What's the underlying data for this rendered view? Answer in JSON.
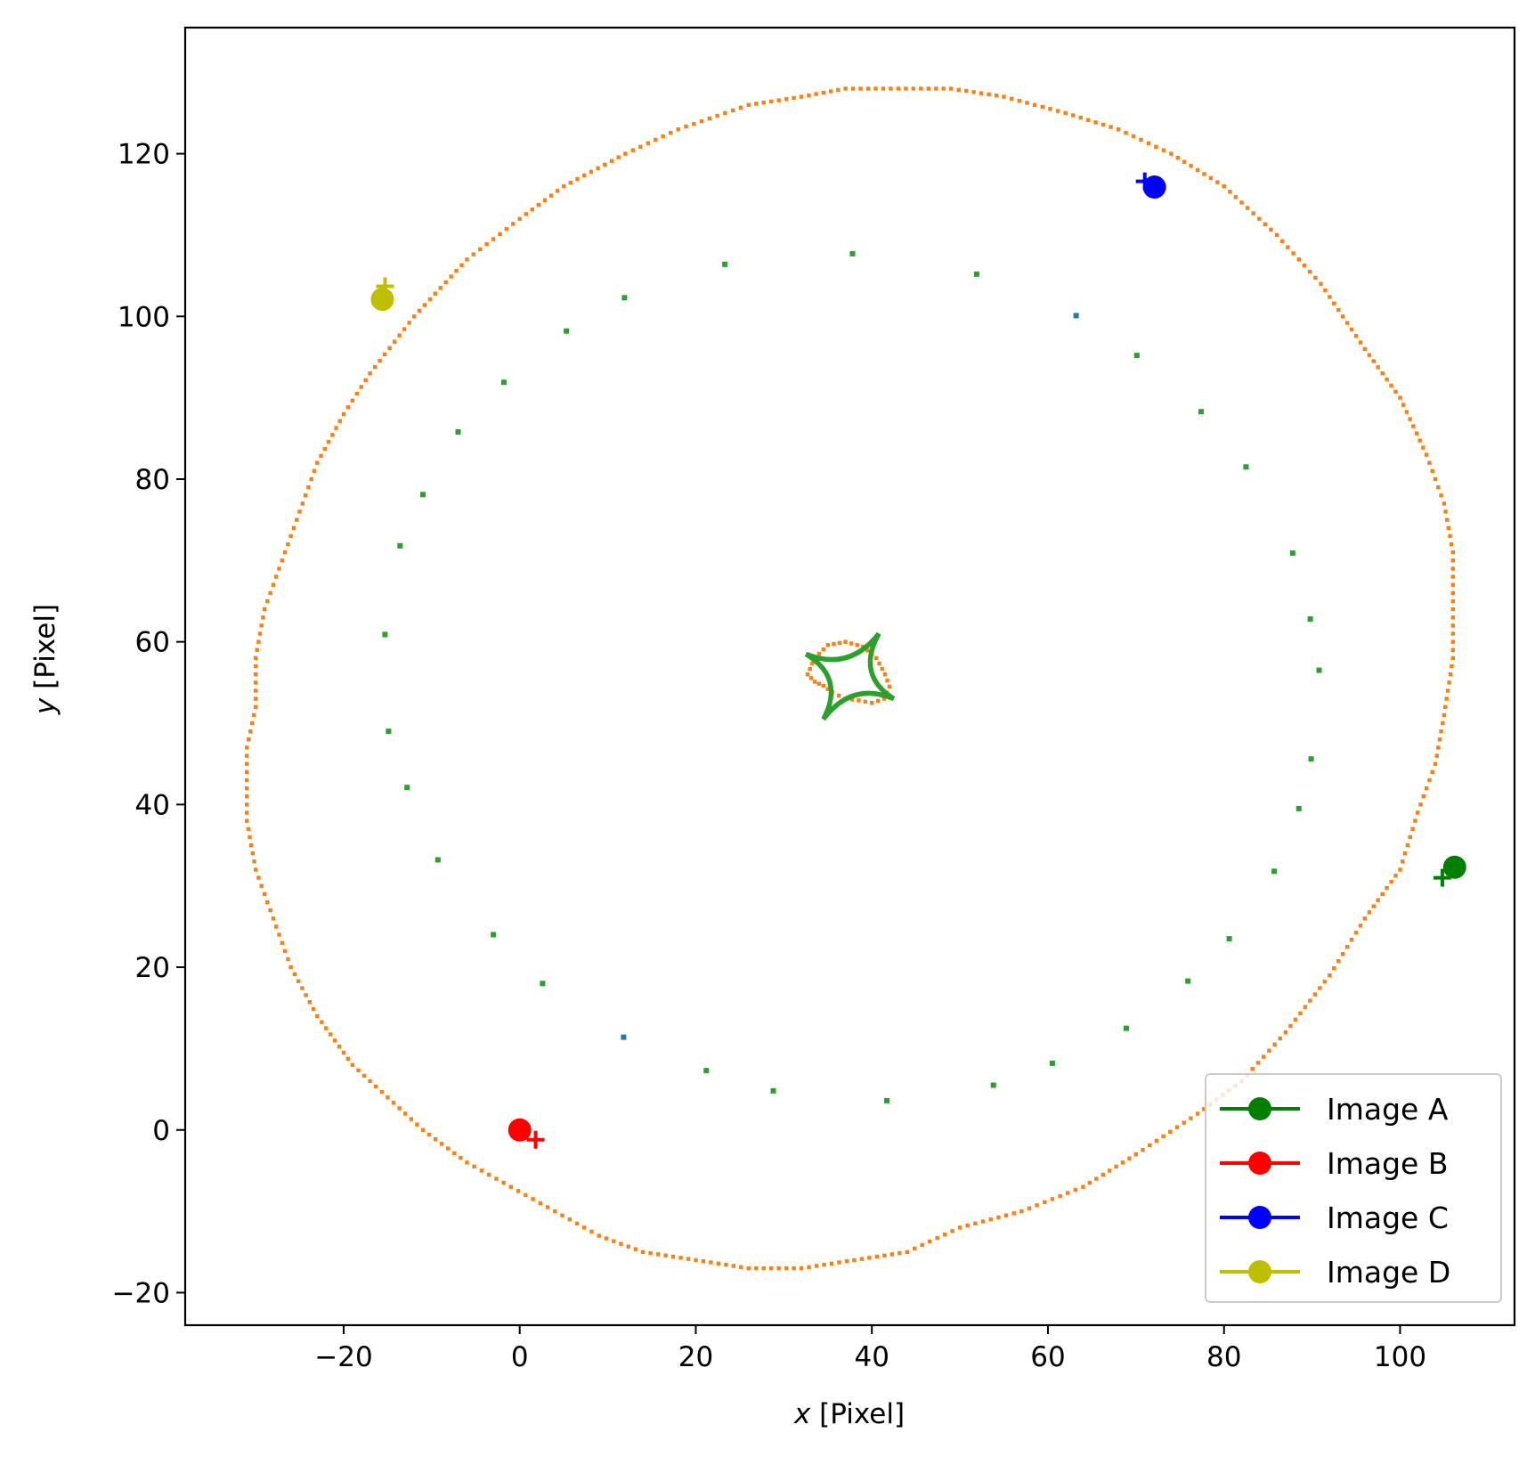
{
  "chart_data": {
    "type": "scatter",
    "xlabel": {
      "var": "x",
      "unit": "[Pixel]"
    },
    "ylabel": {
      "var": "y",
      "unit": "[Pixel]"
    },
    "xlim": [
      -38,
      113
    ],
    "ylim": [
      -24,
      135.5
    ],
    "xticks": [
      -20,
      0,
      20,
      40,
      60,
      80,
      100
    ],
    "yticks": [
      -20,
      0,
      20,
      40,
      60,
      80,
      100,
      120
    ],
    "grid": false,
    "legend_position": "lower-right",
    "colors": {
      "orange": "#ff7f0e",
      "green_small": "#2ca02c",
      "blue_small": "#1f77b4",
      "image_a": "#008000",
      "image_b": "#ff0000",
      "image_c": "#0000ff",
      "image_d": "#bfbf00"
    },
    "outer_curve": {
      "color": "#ff7f0e",
      "points": [
        [
          -31,
          47
        ],
        [
          -30,
          52
        ],
        [
          -30,
          58
        ],
        [
          -29,
          64
        ],
        [
          -27,
          70
        ],
        [
          -25,
          76
        ],
        [
          -23,
          82
        ],
        [
          -20,
          88
        ],
        [
          -17,
          93
        ],
        [
          -12,
          100
        ],
        [
          -6,
          107
        ],
        [
          0,
          112
        ],
        [
          5,
          116
        ],
        [
          12,
          120
        ],
        [
          18,
          123
        ],
        [
          26,
          126
        ],
        [
          32,
          127
        ],
        [
          37,
          128
        ],
        [
          43,
          128
        ],
        [
          49,
          128
        ],
        [
          55,
          127
        ],
        [
          62,
          125
        ],
        [
          68,
          123
        ],
        [
          74,
          120
        ],
        [
          80,
          116
        ],
        [
          86,
          110
        ],
        [
          91,
          104
        ],
        [
          96,
          96
        ],
        [
          100,
          90
        ],
        [
          103,
          83
        ],
        [
          105,
          77
        ],
        [
          106,
          71
        ],
        [
          106,
          64
        ],
        [
          106,
          58
        ],
        [
          105,
          51
        ],
        [
          104,
          45
        ],
        [
          102,
          39
        ],
        [
          100,
          32
        ],
        [
          96,
          26
        ],
        [
          92,
          19
        ],
        [
          87,
          12
        ],
        [
          82,
          6
        ],
        [
          77,
          2
        ],
        [
          70,
          -3
        ],
        [
          64,
          -7
        ],
        [
          57,
          -10
        ],
        [
          50,
          -12
        ],
        [
          44,
          -15
        ],
        [
          38,
          -16
        ],
        [
          32,
          -17
        ],
        [
          26,
          -17
        ],
        [
          20,
          -16
        ],
        [
          14,
          -15
        ],
        [
          9,
          -13
        ],
        [
          4,
          -10
        ],
        [
          -1,
          -7
        ],
        [
          -6,
          -4
        ],
        [
          -11,
          0
        ],
        [
          -15,
          4
        ],
        [
          -19,
          8
        ],
        [
          -23,
          14
        ],
        [
          -26,
          20
        ],
        [
          -28,
          26
        ],
        [
          -30,
          32
        ],
        [
          -31,
          38
        ],
        [
          -31,
          44
        ]
      ]
    },
    "inner_curve": {
      "color": "#ff7f0e",
      "points": [
        [
          32.7,
          56
        ],
        [
          33.5,
          58
        ],
        [
          35,
          59.6
        ],
        [
          37,
          60
        ],
        [
          39,
          59.4
        ],
        [
          40.5,
          58
        ],
        [
          41.5,
          56
        ],
        [
          42,
          54.5
        ],
        [
          41.4,
          53
        ],
        [
          40,
          52.5
        ],
        [
          38.5,
          52.8
        ],
        [
          37,
          53
        ],
        [
          35.5,
          53.8
        ],
        [
          34.5,
          54.6
        ],
        [
          33.5,
          55.1
        ]
      ]
    },
    "caustic_curve": {
      "color": "#2ca02c",
      "cusps": [
        [
          32.5,
          58.5
        ],
        [
          40.8,
          61
        ],
        [
          42.5,
          53
        ],
        [
          34.5,
          50.5
        ]
      ]
    },
    "green_points": {
      "color": "#2ca02c",
      "points": [
        [
          37.8,
          107.7
        ],
        [
          23.3,
          106.4
        ],
        [
          11.9,
          102.3
        ],
        [
          5.3,
          98.2
        ],
        [
          -1.8,
          91.9
        ],
        [
          -7,
          85.8
        ],
        [
          -11,
          78.1
        ],
        [
          -13.6,
          71.8
        ],
        [
          -15.3,
          60.9
        ],
        [
          -14.9,
          49
        ],
        [
          -12.8,
          42.1
        ],
        [
          -9.3,
          33.2
        ],
        [
          -3,
          24
        ],
        [
          2.6,
          18
        ],
        [
          21.2,
          7.3
        ],
        [
          28.8,
          4.8
        ],
        [
          41.7,
          3.6
        ],
        [
          53.8,
          5.5
        ],
        [
          60.5,
          8.2
        ],
        [
          68.9,
          12.5
        ],
        [
          75.9,
          18.3
        ],
        [
          80.6,
          23.5
        ],
        [
          85.7,
          31.8
        ],
        [
          88.5,
          39.5
        ],
        [
          89.9,
          45.6
        ],
        [
          90.8,
          56.5
        ],
        [
          89.8,
          62.8
        ],
        [
          87.8,
          70.9
        ],
        [
          82.5,
          81.5
        ],
        [
          77.4,
          88.3
        ],
        [
          70.1,
          95.2
        ],
        [
          51.9,
          105.2
        ]
      ]
    },
    "blue_points": {
      "color": "#1f77b4",
      "points": [
        [
          63.2,
          100.1
        ],
        [
          11.8,
          11.4
        ]
      ]
    },
    "series": [
      {
        "name": "Image A",
        "color": "#008000",
        "point": [
          106.2,
          32.3
        ],
        "cross": [
          104.8,
          31.0
        ]
      },
      {
        "name": "Image B",
        "color": "#ff0000",
        "point": [
          0.0,
          0.0
        ],
        "cross": [
          1.8,
          -1.2
        ]
      },
      {
        "name": "Image C",
        "color": "#0000ff",
        "point": [
          72.1,
          115.9
        ],
        "cross": [
          71.0,
          116.6
        ]
      },
      {
        "name": "Image D",
        "color": "#bfbf00",
        "point": [
          -15.6,
          102.1
        ],
        "cross": [
          -15.3,
          103.7
        ]
      }
    ]
  }
}
